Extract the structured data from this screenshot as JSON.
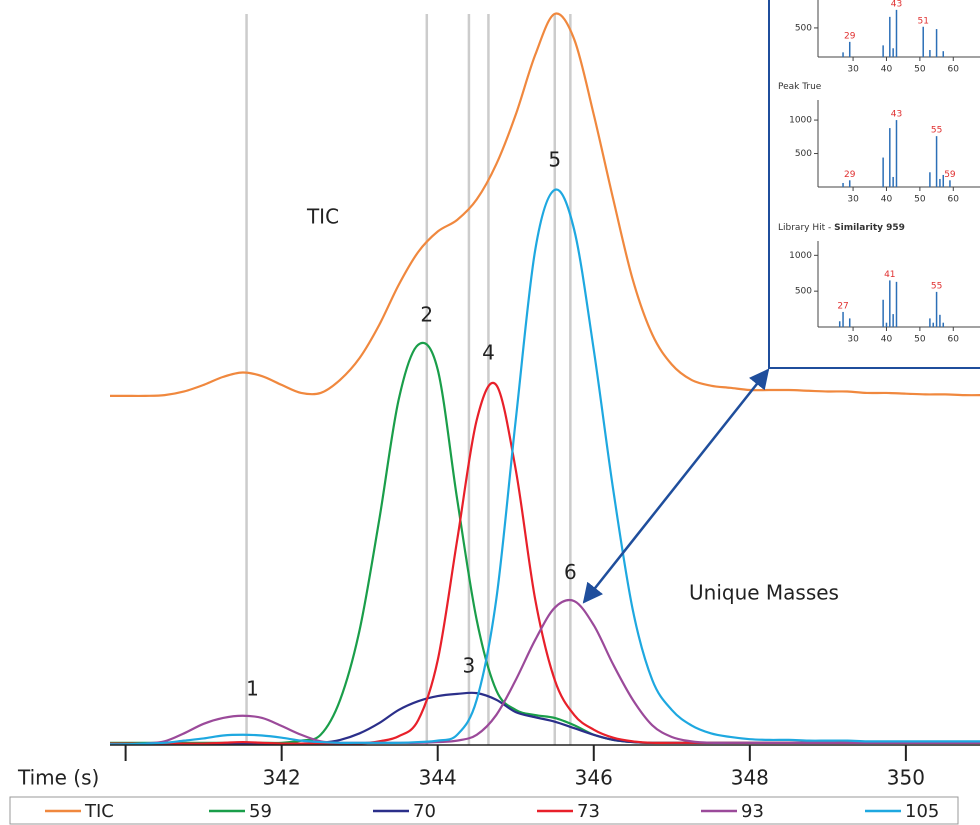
{
  "chart_data": [
    {
      "type": "line",
      "x_label": "Time (s)",
      "annotations": [
        "TIC",
        "Unique Masses"
      ],
      "x": [
        339.75,
        340,
        340.25,
        340.5,
        340.75,
        341,
        341.25,
        341.5,
        341.75,
        342,
        342.25,
        342.5,
        342.75,
        343,
        343.25,
        343.5,
        343.75,
        344,
        344.25,
        344.5,
        344.75,
        345,
        345.25,
        345.5,
        345.75,
        346,
        346.25,
        346.5,
        346.75,
        347,
        347.25,
        347.5,
        347.75,
        348,
        348.25,
        348.5,
        348.75,
        349,
        349.25,
        349.5,
        349.75,
        350,
        350.25,
        350.5,
        350.75,
        351
      ],
      "xlim": [
        339.8,
        350.95
      ],
      "xticks": [
        {
          "value": 340,
          "label": null
        },
        342,
        344,
        346,
        348,
        350
      ],
      "ylim": [
        0,
        102
      ],
      "legend": "bottom",
      "peak_line_color": "#cccccc",
      "series": [
        {
          "name": "TIC",
          "color": "#f0883e",
          "values": [
            47.8,
            47.8,
            47.8,
            47.9,
            48.4,
            49.3,
            50.4,
            51.0,
            50.5,
            49.3,
            48.2,
            48.2,
            50.0,
            53.0,
            57.5,
            63.0,
            67.5,
            70.3,
            71.9,
            74.7,
            79.5,
            86.3,
            94.5,
            100.1,
            96.6,
            86.3,
            74.7,
            63.7,
            56.2,
            52.1,
            50.0,
            49.2,
            48.9,
            48.6,
            48.6,
            48.6,
            48.5,
            48.4,
            48.4,
            48.2,
            48.2,
            48.1,
            48.0,
            48.0,
            47.9,
            47.9
          ]
        },
        {
          "name": "59",
          "color": "#1a9e4a",
          "values": [
            0.3,
            0.3,
            0.3,
            0.3,
            0.3,
            0.3,
            0.3,
            0.3,
            0.3,
            0.3,
            0.6,
            1.4,
            6.2,
            15.8,
            30.8,
            47.3,
            54.8,
            51.4,
            33.6,
            17.1,
            7.5,
            4.8,
            4.1,
            3.7,
            2.7,
            1.4,
            0.7,
            0.4,
            0.3,
            0.3,
            0.3,
            0.3,
            0.3,
            0.3,
            0.3,
            0.3,
            0.3,
            0.3,
            0.3,
            0.3,
            0.3,
            0.3,
            0.3,
            0.3,
            0.3,
            0.3
          ]
        },
        {
          "name": "70",
          "color": "#2b2f8a",
          "values": [
            0.2,
            0.2,
            0.2,
            0.2,
            0.2,
            0.2,
            0.2,
            0.2,
            0.2,
            0.2,
            0.2,
            0.3,
            0.7,
            1.6,
            3.0,
            4.8,
            6.0,
            6.7,
            7.0,
            7.1,
            6.2,
            4.5,
            3.8,
            3.2,
            2.3,
            1.4,
            0.7,
            0.4,
            0.3,
            0.3,
            0.3,
            0.3,
            0.3,
            0.3,
            0.3,
            0.3,
            0.3,
            0.3,
            0.3,
            0.3,
            0.3,
            0.3,
            0.3,
            0.3,
            0.3,
            0.3
          ]
        },
        {
          "name": "73",
          "color": "#e8202a",
          "values": [
            0.2,
            0.2,
            0.2,
            0.2,
            0.2,
            0.2,
            0.3,
            0.4,
            0.3,
            0.2,
            0.2,
            0.2,
            0.2,
            0.2,
            0.5,
            1.2,
            3.4,
            11.6,
            28.1,
            44.5,
            49.3,
            37.7,
            19.9,
            8.9,
            4.1,
            2.1,
            1.0,
            0.5,
            0.3,
            0.3,
            0.3,
            0.3,
            0.3,
            0.3,
            0.3,
            0.3,
            0.3,
            0.3,
            0.3,
            0.3,
            0.3,
            0.3,
            0.3,
            0.3,
            0.3,
            0.3
          ]
        },
        {
          "name": "93",
          "color": "#9b4a9a",
          "values": [
            0.1,
            0.1,
            0.2,
            0.5,
            1.6,
            2.9,
            3.7,
            4.0,
            3.7,
            2.6,
            1.4,
            0.5,
            0.3,
            0.3,
            0.3,
            0.3,
            0.3,
            0.4,
            0.6,
            1.4,
            4.1,
            8.9,
            14.4,
            18.8,
            19.7,
            16.4,
            11.0,
            6.2,
            2.7,
            1.1,
            0.5,
            0.3,
            0.3,
            0.3,
            0.3,
            0.3,
            0.3,
            0.3,
            0.3,
            0.3,
            0.3,
            0.3,
            0.3,
            0.3,
            0.3,
            0.3
          ]
        },
        {
          "name": "105",
          "color": "#1ea8e0",
          "values": [
            0.1,
            0.1,
            0.2,
            0.3,
            0.6,
            0.9,
            1.3,
            1.4,
            1.3,
            1.0,
            0.6,
            0.4,
            0.3,
            0.3,
            0.3,
            0.3,
            0.4,
            0.6,
            1.4,
            6.2,
            19.9,
            44.5,
            67.8,
            76.0,
            70.5,
            54.1,
            34.9,
            18.5,
            8.9,
            4.8,
            2.7,
            1.6,
            1.1,
            0.8,
            0.7,
            0.7,
            0.6,
            0.6,
            0.6,
            0.5,
            0.5,
            0.5,
            0.5,
            0.5,
            0.5,
            0.5
          ]
        }
      ],
      "peaks": [
        {
          "label": "1",
          "time": 341.55,
          "height": 4.0
        },
        {
          "label": "2",
          "time": 343.86,
          "height": 55.2
        },
        {
          "label": "3",
          "time": 344.4,
          "height": 7.1
        },
        {
          "label": "4",
          "time": 344.65,
          "height": 50.0
        },
        {
          "label": "5",
          "time": 345.5,
          "height": 76.4
        },
        {
          "label": "6",
          "time": 345.7,
          "height": 19.9
        }
      ]
    },
    {
      "type": "bar",
      "x": [
        27,
        29,
        39,
        41,
        42,
        43,
        51,
        53,
        55,
        57
      ],
      "values": [
        80,
        260,
        200,
        690,
        150,
        810,
        520,
        120,
        480,
        100
      ],
      "xlim": [
        19.5,
        68
      ],
      "xticks": [
        30,
        40,
        50,
        60
      ],
      "ylim": [
        0,
        980
      ],
      "yticks": [
        500
      ],
      "labels": [
        29,
        43,
        51
      ],
      "color": "#2c6fb7",
      "label_color": "#e03030"
    },
    {
      "type": "bar",
      "title": "Peak True",
      "x": [
        27,
        29,
        39,
        41,
        42,
        43,
        53,
        55,
        56,
        57,
        59
      ],
      "values": [
        60,
        100,
        440,
        880,
        150,
        1000,
        220,
        760,
        120,
        180,
        100
      ],
      "xlim": [
        19.5,
        68
      ],
      "xticks": [
        30,
        40,
        50,
        60
      ],
      "ylim": [
        0,
        1300
      ],
      "yticks": [
        500,
        1000
      ],
      "labels": [
        29,
        43,
        55,
        59
      ],
      "color": "#2c6fb7",
      "label_color": "#e03030"
    },
    {
      "type": "bar",
      "title": "Library Hit -",
      "title_emphasis": "Similarity 959",
      "x": [
        26,
        27,
        29,
        39,
        40,
        41,
        42,
        43,
        53,
        54,
        55,
        56,
        57
      ],
      "values": [
        80,
        210,
        120,
        380,
        60,
        650,
        180,
        630,
        120,
        60,
        490,
        170,
        60
      ],
      "xlim": [
        19.5,
        68
      ],
      "xticks": [
        30,
        40,
        50,
        60
      ],
      "ylim": [
        0,
        1200
      ],
      "yticks": [
        500,
        1000
      ],
      "labels": [
        27,
        41,
        55
      ],
      "color": "#2c6fb7",
      "label_color": "#e03030"
    }
  ]
}
